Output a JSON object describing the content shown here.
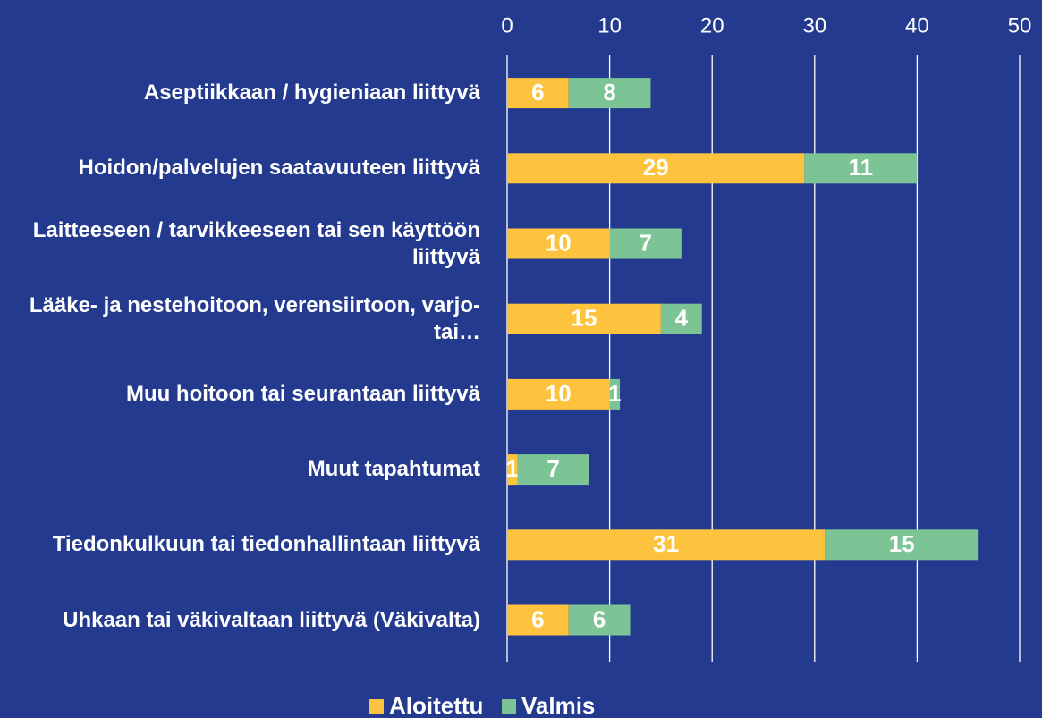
{
  "chart_data": {
    "type": "bar",
    "orientation": "horizontal",
    "stacked": true,
    "categories": [
      "Aseptiikkaan / hygieniaan liittyvä",
      "Hoidon/palvelujen saatavuuteen liittyvä",
      "Laitteeseen / tarvikkeeseen tai sen käyttöön liittyvä",
      "Lääke- ja nestehoitoon, verensiirtoon, varjo- tai…",
      "Muu hoitoon tai seurantaan liittyvä",
      "Muut tapahtumat",
      "Tiedonkulkuun tai tiedonhallintaan liittyvä",
      "Uhkaan tai väkivaltaan liittyvä (Väkivalta)"
    ],
    "series": [
      {
        "name": "Aloitettu",
        "color": "#fdc23e",
        "values": [
          6,
          29,
          10,
          15,
          10,
          1,
          31,
          6
        ]
      },
      {
        "name": "Valmis",
        "color": "#7cc495",
        "values": [
          8,
          11,
          7,
          4,
          1,
          7,
          15,
          6
        ]
      }
    ],
    "xlim": [
      0,
      50
    ],
    "xticks": [
      0,
      10,
      20,
      30,
      40,
      50
    ],
    "grid": true,
    "legend": "bottom"
  }
}
